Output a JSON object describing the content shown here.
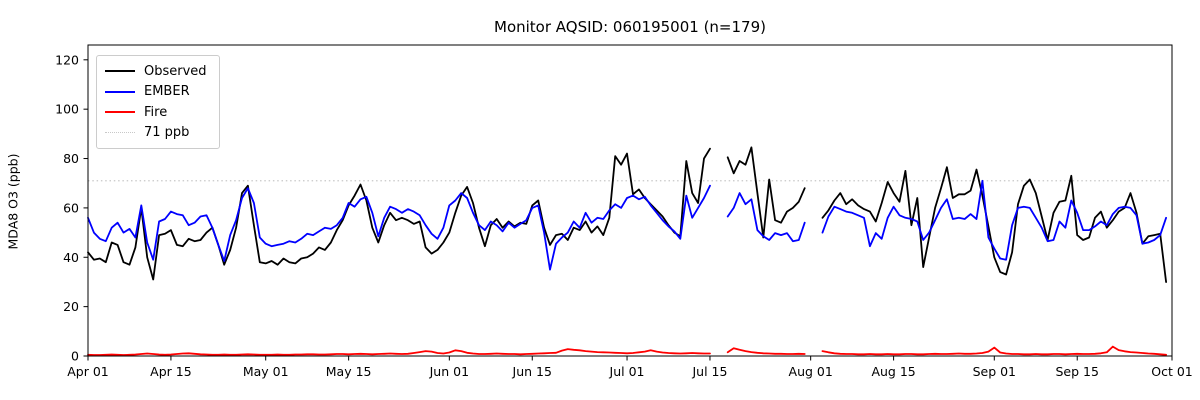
{
  "title": "Monitor AQSID: 060195001 (n=179)",
  "ylabel": "MDA8 O3 (ppb)",
  "colors": {
    "observed": "#000000",
    "ember": "#0000ff",
    "fire": "#ff0000",
    "threshold": "#c8c8c8",
    "axis": "#000000",
    "background": "#ffffff",
    "legend_border": "#cccccc"
  },
  "legend": {
    "position": "upper left",
    "entries": [
      {
        "label": "Observed",
        "color": "#000000",
        "style": "solid"
      },
      {
        "label": "EMBER",
        "color": "#0000ff",
        "style": "solid"
      },
      {
        "label": "Fire",
        "color": "#ff0000",
        "style": "solid"
      },
      {
        "label": "71 ppb",
        "color": "#c8c8c8",
        "style": "dotted"
      }
    ]
  },
  "chart_data": {
    "type": "line",
    "title": "Monitor AQSID: 060195001 (n=179)",
    "xlabel": "",
    "ylabel": "MDA8 O3 (ppb)",
    "n_observed": 179,
    "grid": false,
    "ylim": [
      0,
      126
    ],
    "y_ticks": [
      0,
      20,
      40,
      60,
      80,
      100,
      120
    ],
    "x_start_date": "Apr 01",
    "x_cadence": "daily",
    "x_total_days": 183,
    "x_tick_days": [
      0,
      14,
      30,
      44,
      61,
      75,
      91,
      105,
      122,
      136,
      153,
      167,
      183
    ],
    "x_tick_labels": [
      "Apr 01",
      "Apr 15",
      "May 01",
      "May 15",
      "Jun 01",
      "Jun 15",
      "Jul 01",
      "Jul 15",
      "Aug 01",
      "Aug 15",
      "Sep 01",
      "Sep 15",
      "Oct 01"
    ],
    "missing_dates": [
      "Jul 16",
      "Jul 17",
      "Aug 01",
      "Aug 02"
    ],
    "threshold": {
      "value": 71,
      "label": "71 ppb",
      "style": "dotted",
      "color": "#c8c8c8"
    },
    "series": [
      {
        "name": "Observed",
        "color": "#000000",
        "values": [
          42,
          39,
          39.5,
          38,
          46,
          45,
          38,
          37,
          44,
          60,
          40,
          31,
          49,
          49.5,
          51,
          45,
          44.5,
          47.5,
          46.5,
          47,
          50,
          52,
          45,
          37,
          43,
          52,
          66,
          69,
          53,
          38,
          37.5,
          38.5,
          37,
          39.5,
          38,
          37.5,
          39.5,
          40,
          41.5,
          44,
          43,
          46,
          51,
          55,
          61,
          65,
          69.5,
          63,
          52,
          46,
          53,
          58,
          55,
          56,
          55,
          53.5,
          54.5,
          44,
          41.5,
          43,
          46,
          50,
          58,
          65,
          68.5,
          62,
          52,
          44.5,
          53,
          55.5,
          52,
          54.5,
          52.5,
          54,
          53.5,
          61,
          63,
          52,
          45,
          49,
          49.5,
          47,
          52,
          51,
          54.5,
          50,
          52.5,
          49,
          56,
          81,
          77.5,
          82,
          65.5,
          67.5,
          64,
          61.5,
          59,
          56.5,
          53,
          50,
          48.5,
          79,
          66,
          62,
          80,
          84,
          null,
          null,
          80.5,
          74,
          79,
          77.5,
          84.5,
          66,
          48,
          71.5,
          55,
          54,
          58.5,
          60,
          62.5,
          68,
          null,
          null,
          56,
          59,
          63,
          66,
          61.5,
          63.5,
          61,
          59.5,
          58.5,
          54.5,
          62,
          70.5,
          66,
          62.5,
          75,
          53,
          64,
          36,
          48,
          60,
          68,
          76.5,
          64,
          65.5,
          65.5,
          67,
          75.5,
          65,
          52.5,
          40,
          34,
          33,
          42,
          61.5,
          69,
          71.5,
          66,
          56.5,
          47,
          58,
          62.5,
          63,
          73,
          49,
          47,
          48,
          56,
          58.5,
          52,
          55,
          58.5,
          60,
          66,
          58,
          45.5,
          48.5,
          49,
          49.5,
          30
        ]
      },
      {
        "name": "EMBER",
        "color": "#0000ff",
        "values": [
          56,
          50,
          47.5,
          46.5,
          52,
          54,
          50,
          51.5,
          48,
          61,
          46,
          39,
          54.5,
          55.5,
          58.5,
          57.5,
          57,
          53,
          54,
          56.5,
          57,
          52,
          45,
          38.5,
          49,
          55,
          64,
          68,
          62,
          48,
          45.5,
          44.5,
          45,
          45.5,
          46.5,
          46,
          47.5,
          49.5,
          49,
          50.5,
          52,
          51.5,
          53,
          56,
          62,
          60.5,
          63.5,
          64.5,
          58,
          48.5,
          56,
          60.5,
          59.5,
          58,
          59.5,
          58.5,
          57,
          53,
          49.5,
          47.5,
          52,
          61,
          63,
          66,
          64,
          58,
          53,
          51,
          54.5,
          53,
          50.5,
          54,
          52,
          53.5,
          55,
          60,
          61,
          50,
          35,
          45.5,
          48,
          50,
          54.5,
          52,
          58,
          54,
          56,
          55.5,
          59,
          61.5,
          60,
          64,
          65,
          63.5,
          64.5,
          61,
          58,
          55,
          52.5,
          50.5,
          47.5,
          65,
          56,
          60,
          64,
          69,
          null,
          null,
          56.5,
          60,
          66,
          61.5,
          63.5,
          51,
          48.5,
          47,
          49.8,
          49,
          49.8,
          46.5,
          47,
          54,
          null,
          null,
          50,
          56.5,
          60.5,
          59.5,
          58.5,
          58,
          57,
          56,
          44.5,
          49.8,
          47.5,
          56,
          60.5,
          57,
          56,
          55.5,
          54.5,
          47,
          50,
          55,
          60,
          63.5,
          55.5,
          56,
          55.5,
          57.5,
          55.5,
          71,
          48,
          43.5,
          39.5,
          39,
          53,
          60,
          60.5,
          60,
          56,
          52,
          46.5,
          47,
          54.5,
          52,
          63,
          58,
          51,
          51,
          52.5,
          54.5,
          53,
          57.5,
          60,
          60.5,
          60,
          57,
          45.5,
          46,
          47,
          49,
          56
        ]
      },
      {
        "name": "Fire",
        "color": "#ff0000",
        "values": [
          0.5,
          0.4,
          0.4,
          0.5,
          0.6,
          0.5,
          0.4,
          0.5,
          0.6,
          0.8,
          1.0,
          0.8,
          0.6,
          0.5,
          0.6,
          0.8,
          1.0,
          1.1,
          0.9,
          0.7,
          0.6,
          0.5,
          0.5,
          0.6,
          0.5,
          0.5,
          0.6,
          0.7,
          0.6,
          0.5,
          0.5,
          0.5,
          0.6,
          0.5,
          0.5,
          0.6,
          0.6,
          0.7,
          0.7,
          0.6,
          0.6,
          0.7,
          0.8,
          0.8,
          0.7,
          0.8,
          0.9,
          0.8,
          0.7,
          0.8,
          0.9,
          1.0,
          0.9,
          0.8,
          0.9,
          1.2,
          1.6,
          2.0,
          1.8,
          1.2,
          1.0,
          1.4,
          2.3,
          2.0,
          1.3,
          1.0,
          0.8,
          0.8,
          0.9,
          1.0,
          0.9,
          0.8,
          0.8,
          0.7,
          0.8,
          0.9,
          1.0,
          1.1,
          1.2,
          1.3,
          2.2,
          2.8,
          2.5,
          2.3,
          2.0,
          1.8,
          1.6,
          1.5,
          1.4,
          1.3,
          1.2,
          1.1,
          1.2,
          1.5,
          1.8,
          2.3,
          1.8,
          1.4,
          1.2,
          1.1,
          1.0,
          1.1,
          1.2,
          1.1,
          1.0,
          1.0,
          null,
          null,
          1.5,
          3.1,
          2.5,
          2.0,
          1.6,
          1.3,
          1.1,
          1.0,
          0.9,
          0.9,
          0.8,
          0.8,
          0.9,
          0.8,
          null,
          null,
          2.0,
          1.5,
          1.1,
          0.9,
          0.8,
          0.8,
          0.7,
          0.7,
          0.8,
          0.7,
          0.7,
          0.8,
          0.7,
          0.7,
          0.8,
          0.8,
          0.7,
          0.7,
          0.8,
          0.9,
          0.8,
          0.8,
          0.9,
          1.0,
          0.9,
          0.9,
          1.0,
          1.2,
          1.8,
          3.4,
          1.4,
          1.0,
          0.8,
          0.8,
          0.7,
          0.7,
          0.8,
          0.7,
          0.7,
          0.8,
          0.8,
          0.7,
          0.8,
          0.9,
          0.8,
          0.8,
          0.9,
          1.1,
          1.5,
          3.8,
          2.4,
          1.9,
          1.6,
          1.4,
          1.2,
          1.0,
          0.9,
          0.7,
          0.5
        ]
      }
    ],
    "legend_position": "upper left"
  }
}
